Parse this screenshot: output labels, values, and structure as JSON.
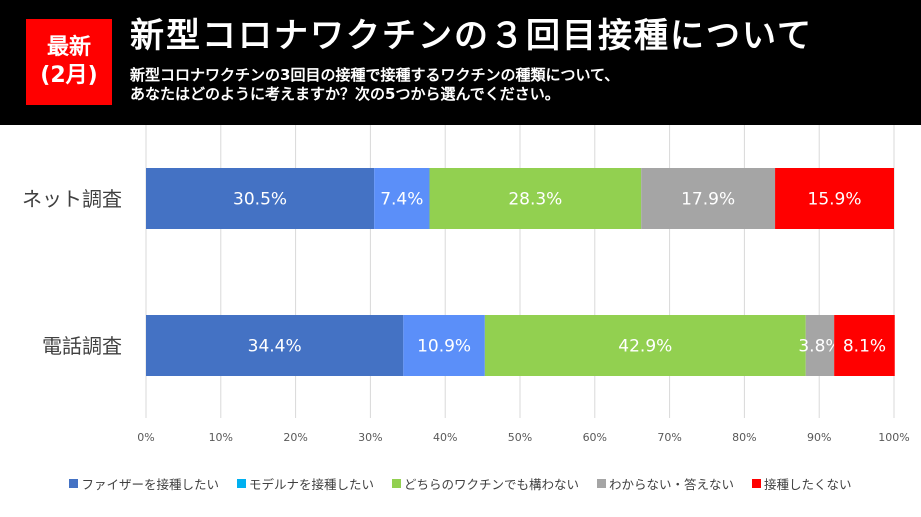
{
  "header": {
    "badge_line1": "最新",
    "badge_line2": "(2月)",
    "title": "新型コロナワクチンの３回目接種について",
    "subtitle_line1": "新型コロナワクチンの3回目の接種で接種するワクチンの種類について、",
    "subtitle_line2": "あなたはどのように考えますか？次の5つから選んでください。"
  },
  "chart_data": {
    "type": "bar",
    "orientation": "horizontal",
    "stacked": "percent",
    "categories": [
      "ネット調査",
      "電話調査"
    ],
    "series": [
      {
        "name": "ファイザーを接種したい",
        "color": "#4472c4",
        "bar_color": "#4472c4",
        "values": [
          30.5,
          34.4
        ],
        "labels": [
          "30.5%",
          "34.4%"
        ]
      },
      {
        "name": "モデルナを接種したい",
        "color": "#00b0f0",
        "bar_color": "#5b8ff9",
        "values": [
          7.4,
          10.9
        ],
        "labels": [
          "7.4%",
          "10.9%"
        ]
      },
      {
        "name": "どちらのワクチンでも構わない",
        "color": "#92d050",
        "bar_color": "#92d050",
        "values": [
          28.3,
          42.9
        ],
        "labels": [
          "28.3%",
          "42.9%"
        ]
      },
      {
        "name": "わからない・答えない",
        "color": "#a5a5a5",
        "bar_color": "#a5a5a5",
        "values": [
          17.9,
          3.8
        ],
        "labels": [
          "17.9%",
          "3.8%"
        ]
      },
      {
        "name": "接種したくない",
        "color": "#ff0000",
        "bar_color": "#ff0000",
        "values": [
          15.9,
          8.1
        ],
        "labels": [
          "15.9%",
          "8.1%"
        ]
      }
    ],
    "xlim": [
      0,
      100
    ],
    "xticks": [
      "0%",
      "10%",
      "20%",
      "30%",
      "40%",
      "50%",
      "60%",
      "70%",
      "80%",
      "90%",
      "100%"
    ],
    "grid": true,
    "legend_position": "bottom"
  }
}
